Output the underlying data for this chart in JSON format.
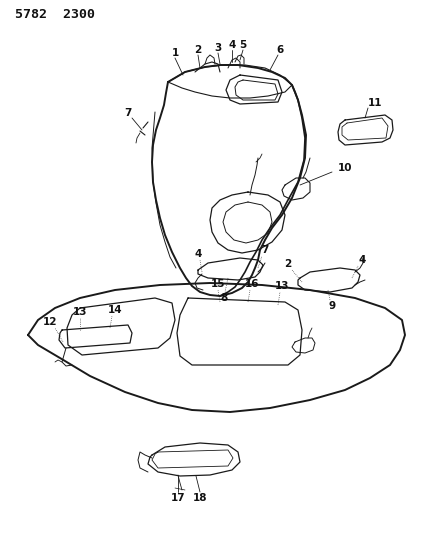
{
  "title": "5782  2300",
  "bg_color": "#ffffff",
  "line_color": "#1a1a1a",
  "label_color": "#111111",
  "figsize": [
    4.28,
    5.33
  ],
  "dpi": 100
}
